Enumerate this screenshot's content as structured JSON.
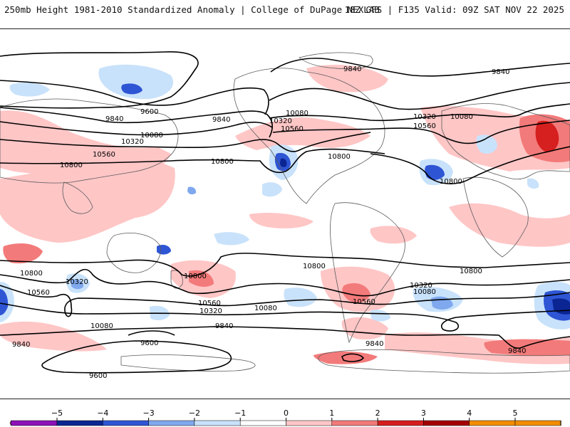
{
  "header": {
    "left": "250mb Height 1981-2010 Standardized Anomaly | College of DuPage NEXLAB",
    "right": "18Z GFS | F135 Valid: 09Z SAT NOV 22 2025"
  },
  "colors": {
    "pos1": "#ffc6c6",
    "pos2": "#f37a7a",
    "pos3": "#d61f1f",
    "pos4": "#a30000",
    "neg1": "#c9e2fb",
    "neg2": "#7fa8ee",
    "neg3": "#2e55d4",
    "neg4": "#0b2592",
    "contour": "#000000",
    "land": "#5a5a5a"
  },
  "contour_labels": [
    {
      "id": "nh-9840-a",
      "text": "9840"
    },
    {
      "id": "nh-9840-b",
      "text": "9840"
    },
    {
      "id": "nh-9840-c",
      "text": "9840"
    },
    {
      "id": "nh-9840-d",
      "text": "9840"
    },
    {
      "id": "nh-9600",
      "text": "9600"
    },
    {
      "id": "nh-10080-a",
      "text": "10080"
    },
    {
      "id": "nh-10080-b",
      "text": "10080"
    },
    {
      "id": "nh-10080-c",
      "text": "10080"
    },
    {
      "id": "nh-10320-a",
      "text": "10320"
    },
    {
      "id": "nh-10320-b",
      "text": "10320"
    },
    {
      "id": "nh-10320-c",
      "text": "10320"
    },
    {
      "id": "nh-10560-a",
      "text": "10560"
    },
    {
      "id": "nh-10560-b",
      "text": "10560"
    },
    {
      "id": "nh-10560-c",
      "text": "10560"
    },
    {
      "id": "nh-10800-a",
      "text": "10800"
    },
    {
      "id": "nh-10800-b",
      "text": "10800"
    },
    {
      "id": "nh-10800-c",
      "text": "10800"
    },
    {
      "id": "nh-10800-d",
      "text": "10800"
    },
    {
      "id": "sh-10800-a",
      "text": "10800"
    },
    {
      "id": "sh-10800-b",
      "text": "10800"
    },
    {
      "id": "sh-10800-c",
      "text": "10800"
    },
    {
      "id": "sh-10800-d",
      "text": "10800"
    },
    {
      "id": "sh-10560-a",
      "text": "10560"
    },
    {
      "id": "sh-10560-b",
      "text": "10560"
    },
    {
      "id": "sh-10560-c",
      "text": "10560"
    },
    {
      "id": "sh-10320-a",
      "text": "10320"
    },
    {
      "id": "sh-10320-b",
      "text": "10320"
    },
    {
      "id": "sh-10320-c",
      "text": "10320"
    },
    {
      "id": "sh-10080-a",
      "text": "10080"
    },
    {
      "id": "sh-10080-b",
      "text": "10080"
    },
    {
      "id": "sh-10080-c",
      "text": "10080"
    },
    {
      "id": "sh-9840-a",
      "text": "9840"
    },
    {
      "id": "sh-9840-b",
      "text": "9840"
    },
    {
      "id": "sh-9840-c",
      "text": "9840"
    },
    {
      "id": "sh-9840-d",
      "text": "9840"
    },
    {
      "id": "sh-9600-a",
      "text": "9600"
    },
    {
      "id": "sh-9600-b",
      "text": "9600"
    }
  ],
  "colorbar": {
    "ticks": [
      "−5",
      "−4",
      "−3",
      "−2",
      "−1",
      "0",
      "1",
      "2",
      "3",
      "4",
      "5"
    ],
    "segments": [
      "#e24fe0",
      "#8c10b8",
      "#0b2592",
      "#2e55d4",
      "#7fa8ee",
      "#c9e2fb",
      "#ffffff",
      "#ffc6c6",
      "#f37a7a",
      "#d61f1f",
      "#a30000",
      "#f38c00",
      "#ffb000"
    ]
  }
}
